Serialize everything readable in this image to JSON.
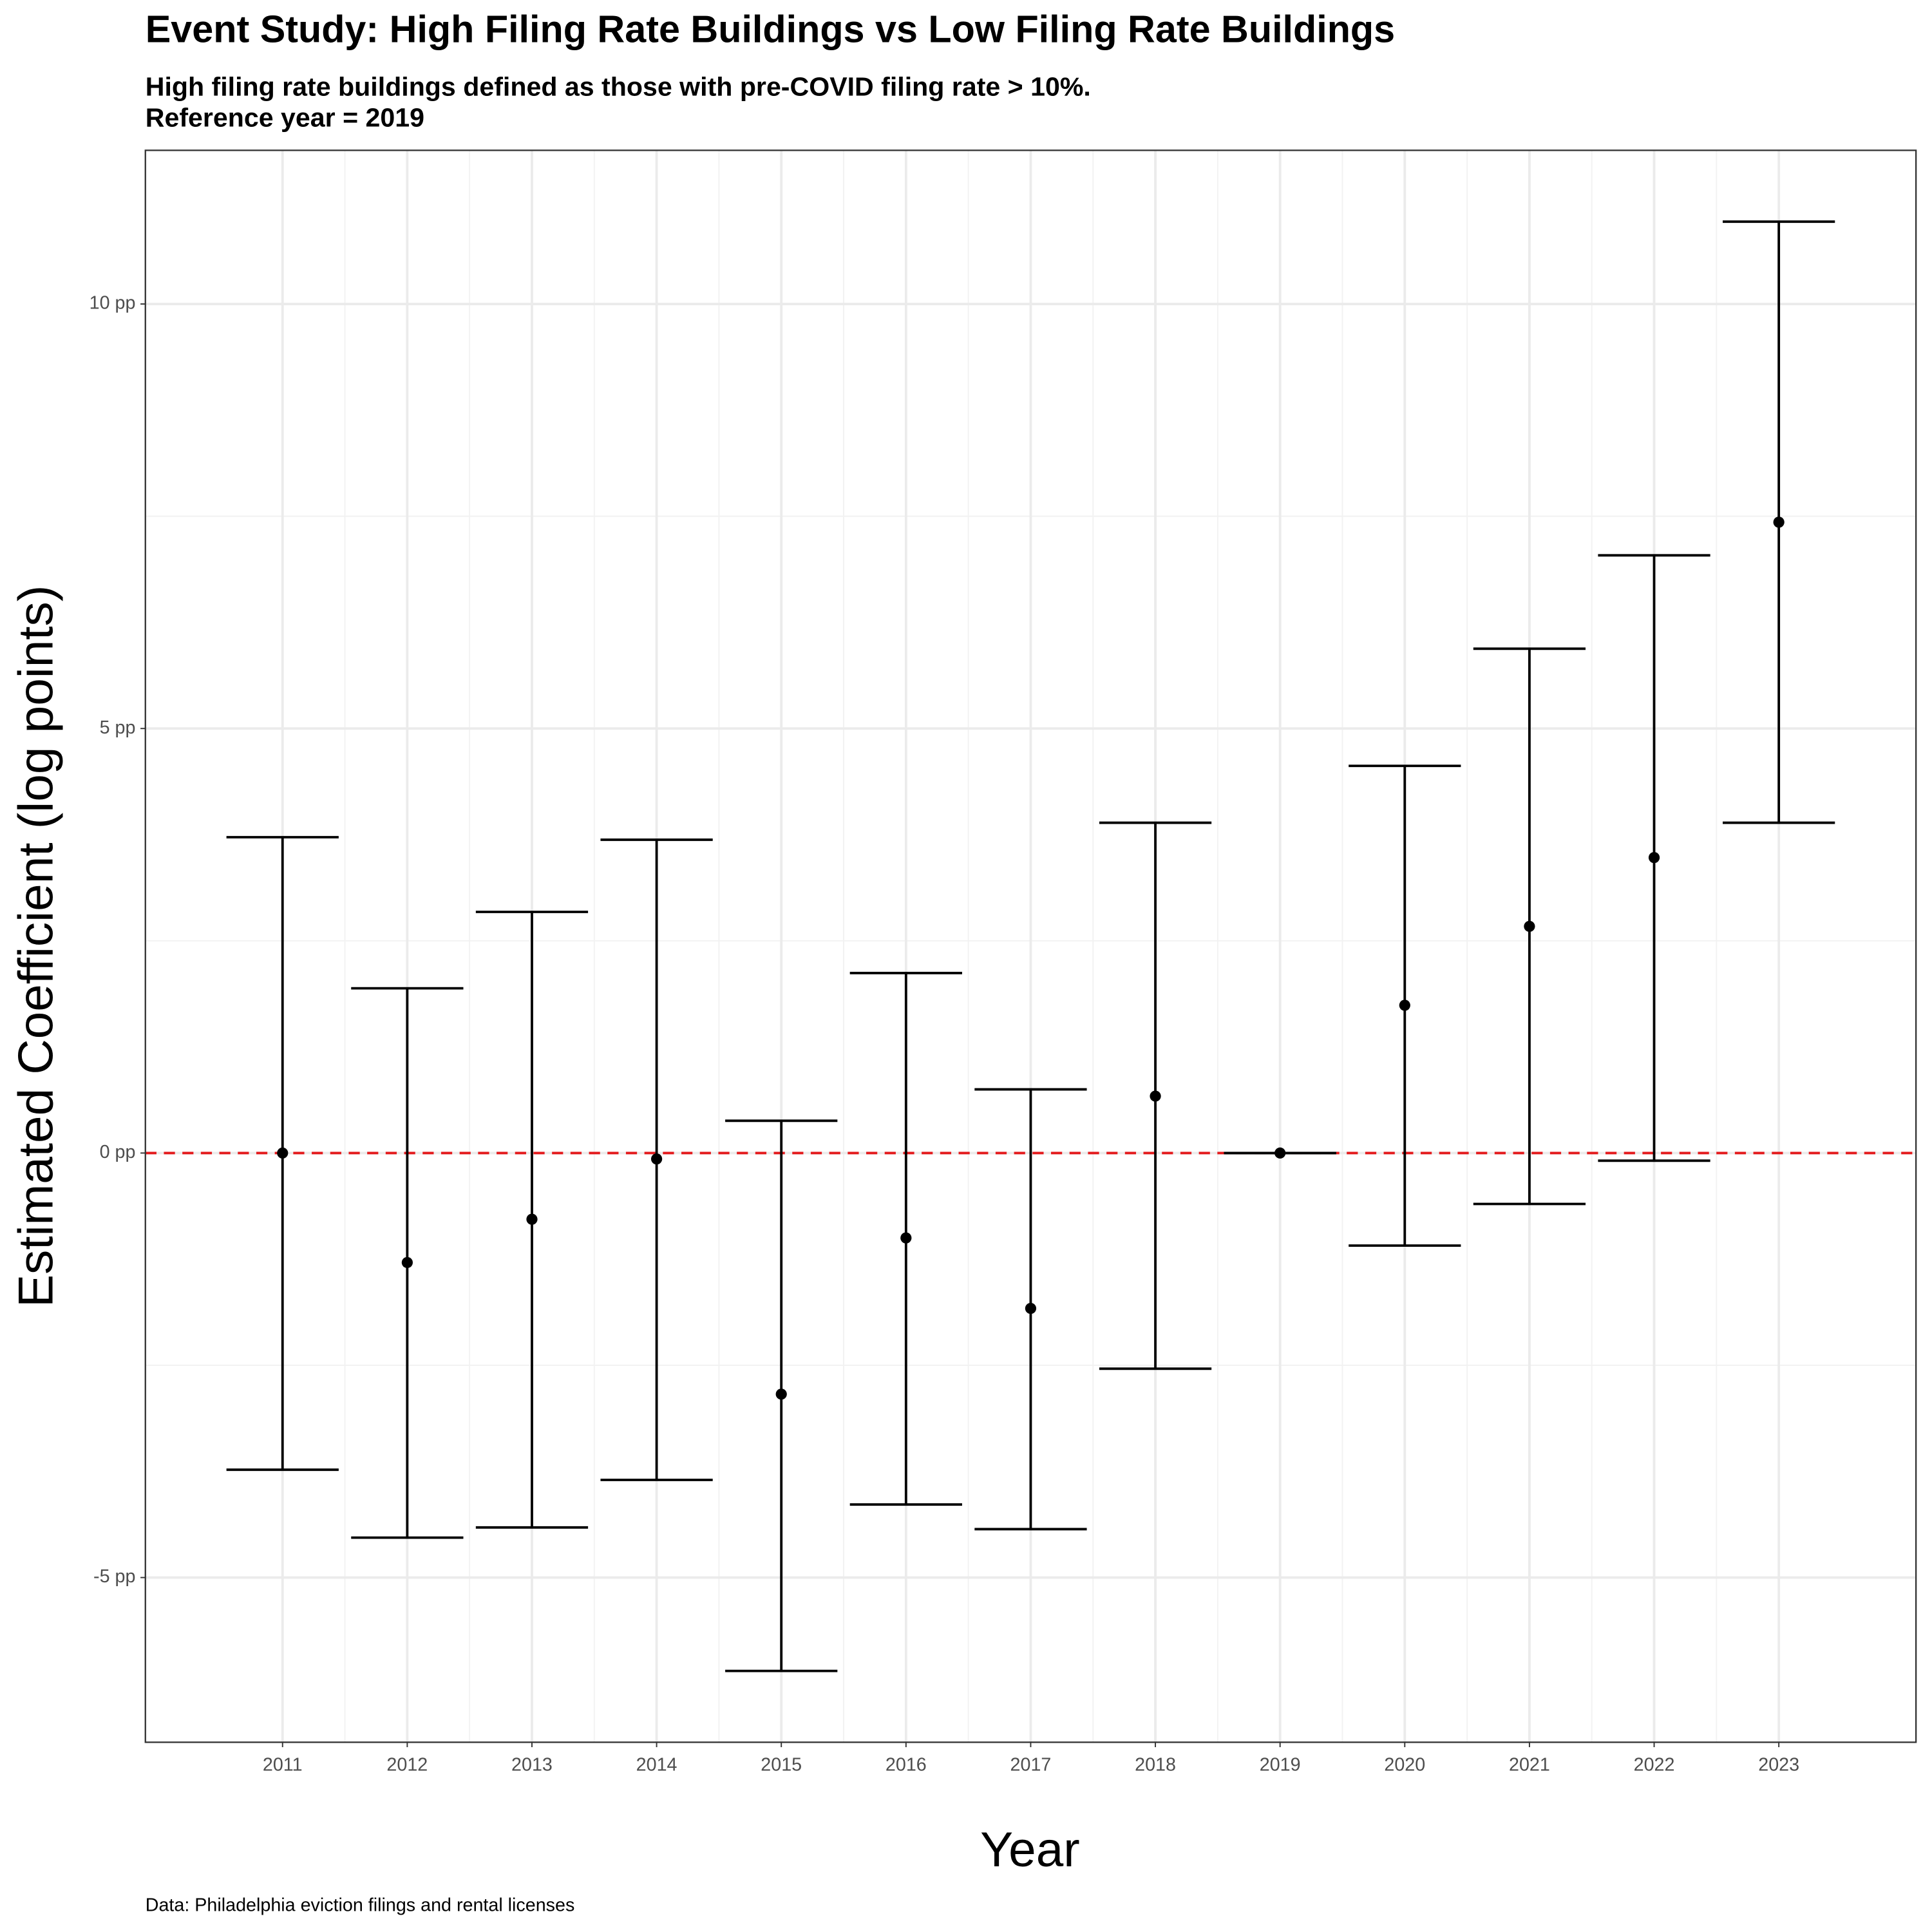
{
  "chart_data": {
    "type": "errorbar",
    "title": "Event Study: High Filing Rate Buildings vs Low Filing Rate Buildings",
    "subtitle": [
      "High filing rate buildings defined as those with pre-COVID filing rate > 10%.",
      "Reference year = 2019"
    ],
    "x_label": "Year",
    "y_label": "Estimated Coefficient (log points)",
    "caption": "Data: Philadelphia eviction filings and rental licenses",
    "x": [
      2011,
      2012,
      2013,
      2014,
      2015,
      2016,
      2017,
      2018,
      2019,
      2020,
      2021,
      2022,
      2023
    ],
    "values": [
      0,
      -1.29,
      -0.78,
      -0.07,
      -2.84,
      -1.0,
      -1.83,
      0.67,
      0,
      1.74,
      2.67,
      3.48,
      7.43
    ],
    "lower": [
      -3.73,
      -4.53,
      -4.41,
      -3.85,
      -6.1,
      -4.14,
      -4.43,
      -2.54,
      0,
      -1.09,
      -0.6,
      -0.09,
      3.89
    ],
    "upper": [
      3.72,
      1.94,
      2.84,
      3.69,
      0.38,
      2.12,
      0.75,
      3.89,
      0,
      4.56,
      5.94,
      7.04,
      10.97
    ],
    "color": "#000000",
    "reference_line": {
      "y": 0,
      "color": "#e31a1c"
    },
    "xlim": [
      2009.9,
      2024.1
    ],
    "ylim": [
      -6.94,
      11.81
    ],
    "xticks": [
      2011,
      2012,
      2013,
      2014,
      2015,
      2016,
      2017,
      2018,
      2019,
      2020,
      2021,
      2022,
      2023
    ],
    "yticks": [
      {
        "value": -5,
        "label": "-5 pp"
      },
      {
        "value": 0,
        "label": "0 pp"
      },
      {
        "value": 5,
        "label": "5 pp"
      },
      {
        "value": 10,
        "label": "10 pp"
      }
    ],
    "grid": true
  }
}
